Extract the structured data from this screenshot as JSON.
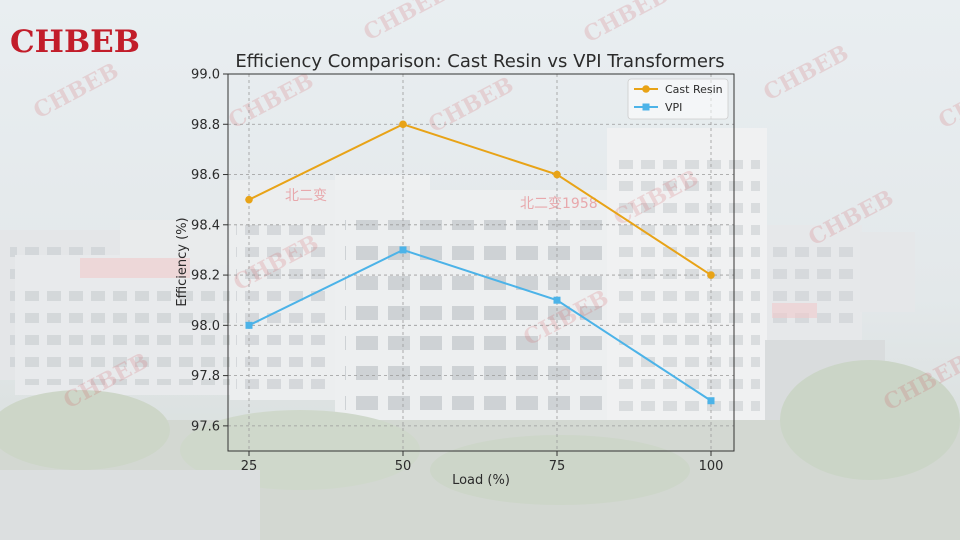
{
  "logo": "CHBEB",
  "watermark": "CHBEB",
  "sign_text_1": "北二变",
  "sign_text_2": "北二变1958",
  "colors": {
    "cast_resin": "#e8a317",
    "vpi": "#4cb3e8",
    "logo": "#c21d2a"
  },
  "chart_data": {
    "type": "line",
    "title": "Efficiency Comparison: Cast Resin vs VPI Transformers",
    "xlabel": "Load (%)",
    "ylabel": "Efficiency (%)",
    "x": [
      25,
      50,
      75,
      100
    ],
    "x_ticks": [
      "25",
      "50",
      "75",
      "100"
    ],
    "y_ticks": [
      "97.6",
      "97.8",
      "98.0",
      "98.2",
      "98.4",
      "98.6",
      "98.8",
      "99.0"
    ],
    "ylim": [
      97.5,
      99.0
    ],
    "grid": true,
    "legend_position": "top-right",
    "series": [
      {
        "name": "Cast Resin",
        "values": [
          98.5,
          98.8,
          98.6,
          98.2
        ],
        "color": "#e8a317",
        "marker": "circle"
      },
      {
        "name": "VPI",
        "values": [
          98.0,
          98.3,
          98.1,
          97.7
        ],
        "color": "#4cb3e8",
        "marker": "square"
      }
    ]
  }
}
